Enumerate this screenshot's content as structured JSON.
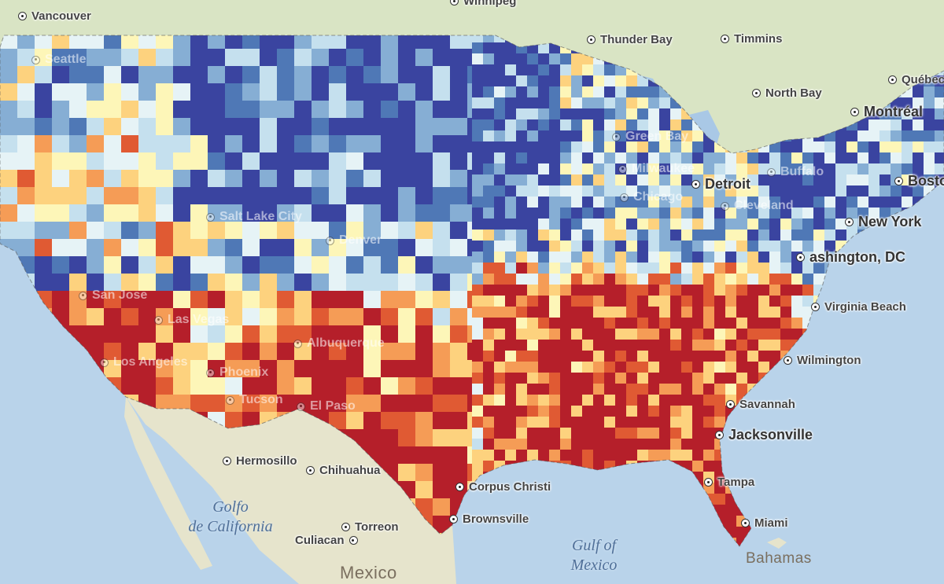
{
  "map": {
    "colors": {
      "ocean": "#b9d3ea",
      "land": "#e8e6cf",
      "land_green": "#d6e3c2",
      "lakes": "#a9c8e6",
      "ramp": [
        "#3a44a0",
        "#4f78b6",
        "#86aed4",
        "#c5e0ee",
        "#e6f3f6",
        "#fdf6b8",
        "#fdd27e",
        "#f59c56",
        "#e05a33",
        "#b51f2a"
      ]
    },
    "cities": [
      {
        "name": "Vancouver",
        "icon": "city-marker-icon"
      },
      {
        "name": "Winnipeg",
        "icon": "city-marker-icon"
      },
      {
        "name": "Thunder Bay",
        "icon": "city-marker-icon"
      },
      {
        "name": "Timmins",
        "icon": "city-marker-icon"
      },
      {
        "name": "North Bay",
        "icon": "city-marker-icon"
      },
      {
        "name": "Québec",
        "icon": "city-marker-icon"
      },
      {
        "name": "Montréal",
        "icon": "city-marker-icon"
      },
      {
        "name": "Boston",
        "icon": "city-marker-icon"
      },
      {
        "name": "Detroit",
        "icon": "city-marker-icon"
      },
      {
        "name": "New York",
        "icon": "city-marker-icon"
      },
      {
        "name": "ashington, DC",
        "icon": "city-marker-icon"
      },
      {
        "name": "Virginia Beach",
        "icon": "city-marker-icon"
      },
      {
        "name": "Wilmington",
        "icon": "city-marker-icon"
      },
      {
        "name": "Savannah",
        "icon": "city-marker-icon"
      },
      {
        "name": "Jacksonville",
        "icon": "city-marker-icon"
      },
      {
        "name": "Tampa",
        "icon": "city-marker-icon"
      },
      {
        "name": "Miami",
        "icon": "city-marker-icon"
      },
      {
        "name": "Corpus Christi",
        "icon": "city-marker-icon"
      },
      {
        "name": "Brownsville",
        "icon": "city-marker-icon"
      },
      {
        "name": "Hermosillo",
        "icon": "city-marker-icon"
      },
      {
        "name": "Chihuahua",
        "icon": "city-marker-icon"
      },
      {
        "name": "Torreon",
        "icon": "city-marker-icon"
      },
      {
        "name": "Culiacan",
        "icon": "city-marker-icon"
      },
      {
        "name": "Seattle",
        "icon": "city-marker-icon"
      },
      {
        "name": "Salt Lake City",
        "icon": "city-marker-icon"
      },
      {
        "name": "Denver",
        "icon": "city-marker-icon"
      },
      {
        "name": "Las Vegas",
        "icon": "city-marker-icon"
      },
      {
        "name": "Los Angeles",
        "icon": "city-marker-icon"
      },
      {
        "name": "Phoenix",
        "icon": "city-marker-icon"
      },
      {
        "name": "Tucson",
        "icon": "city-marker-icon"
      },
      {
        "name": "El Paso",
        "icon": "city-marker-icon"
      },
      {
        "name": "Albuquerque",
        "icon": "city-marker-icon"
      },
      {
        "name": "San Jose",
        "icon": "city-marker-icon"
      },
      {
        "name": "Chicago",
        "icon": "city-marker-icon"
      },
      {
        "name": "Milwaukee",
        "icon": "city-marker-icon"
      },
      {
        "name": "Green Bay",
        "icon": "city-marker-icon"
      },
      {
        "name": "Cleveland",
        "icon": "city-marker-icon"
      },
      {
        "name": "Buffalo",
        "icon": "city-marker-icon"
      }
    ],
    "water_labels": {
      "gulf_california_1": "Golfo",
      "gulf_california_2": "de California",
      "gulf_mexico_1": "Gulf of",
      "gulf_mexico_2": "Mexico"
    },
    "places": {
      "mexico": "Mexico",
      "bahamas": "Bahamas"
    }
  }
}
